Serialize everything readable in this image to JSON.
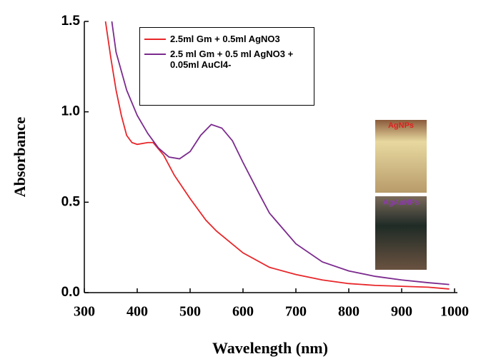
{
  "chart_data": {
    "type": "line",
    "xlabel": "Wavelength (nm)",
    "ylabel": "Absorbance",
    "xlim": [
      300,
      1000
    ],
    "xticks": [
      300,
      400,
      500,
      600,
      700,
      800,
      900,
      1000
    ],
    "ylim": [
      0,
      1.5
    ],
    "yticks": [
      {
        "value": 0,
        "label": "0.0"
      },
      0.5,
      {
        "value": 1,
        "label": "1.0"
      },
      1.5
    ],
    "legend": "top",
    "annotations": [
      "AgNPs",
      "AgAuNPs"
    ],
    "series": [
      {
        "name": "2.5ml Gm + 0.5ml AgNO3",
        "color": "#e8262a",
        "x": [
          340,
          350,
          360,
          370,
          380,
          390,
          400,
          420,
          430,
          450,
          470,
          500,
          530,
          550,
          600,
          650,
          700,
          750,
          800,
          850,
          900,
          950,
          990
        ],
        "values": [
          1.5,
          1.3,
          1.12,
          0.98,
          0.87,
          0.83,
          0.82,
          0.83,
          0.83,
          0.76,
          0.65,
          0.52,
          0.4,
          0.34,
          0.22,
          0.14,
          0.1,
          0.07,
          0.05,
          0.04,
          0.035,
          0.03,
          0.02
        ]
      },
      {
        "name": "2.5 ml Gm + 0.5 ml AgNO3 + 0.05ml AuCl4-",
        "color": "#7b2a8e",
        "x": [
          352,
          360,
          380,
          400,
          420,
          440,
          460,
          480,
          500,
          520,
          540,
          560,
          580,
          600,
          630,
          650,
          700,
          750,
          800,
          850,
          900,
          950,
          990
        ],
        "values": [
          1.5,
          1.33,
          1.12,
          0.98,
          0.88,
          0.8,
          0.75,
          0.74,
          0.78,
          0.87,
          0.93,
          0.91,
          0.84,
          0.72,
          0.55,
          0.44,
          0.27,
          0.17,
          0.12,
          0.09,
          0.07,
          0.055,
          0.045
        ]
      }
    ]
  }
}
